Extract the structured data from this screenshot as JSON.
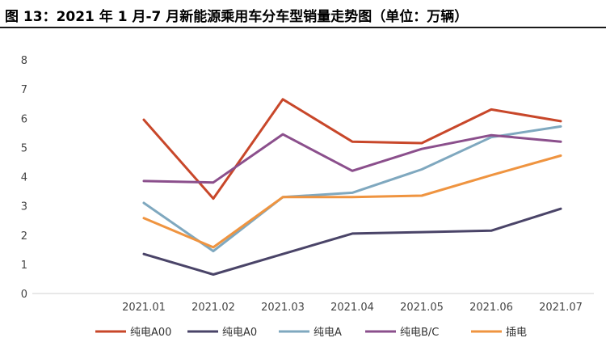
{
  "chart_data": {
    "type": "line",
    "title": "图 13：2021 年 1 月-7 月新能源乘用车分车型销量走势图（单位：万辆）",
    "categories": [
      "2021.01",
      "2021.02",
      "2021.03",
      "2021.04",
      "2021.05",
      "2021.06",
      "2021.07"
    ],
    "ylim": [
      0,
      8
    ],
    "yticks": [
      0,
      1,
      2,
      3,
      4,
      5,
      6,
      7,
      8
    ],
    "xlabel": "",
    "ylabel": "",
    "grid": false,
    "legend_position": "bottom",
    "series": [
      {
        "name": "纯电A00",
        "color": "#c8472a",
        "values": [
          5.95,
          3.25,
          6.65,
          5.2,
          5.15,
          6.3,
          5.9
        ]
      },
      {
        "name": "纯电A0",
        "color": "#4a4468",
        "values": [
          1.35,
          0.65,
          1.35,
          2.05,
          2.1,
          2.15,
          2.9
        ]
      },
      {
        "name": "纯电A",
        "color": "#7fa8bf",
        "values": [
          3.1,
          1.45,
          3.3,
          3.45,
          4.25,
          5.35,
          5.72
        ]
      },
      {
        "name": "纯电B/C",
        "color": "#8b4f8c",
        "values": [
          3.85,
          3.8,
          5.45,
          4.2,
          4.95,
          5.42,
          5.2
        ]
      },
      {
        "name": "插电",
        "color": "#ef9440",
        "values": [
          2.58,
          1.58,
          3.3,
          3.3,
          3.35,
          4.05,
          4.72
        ]
      }
    ]
  }
}
